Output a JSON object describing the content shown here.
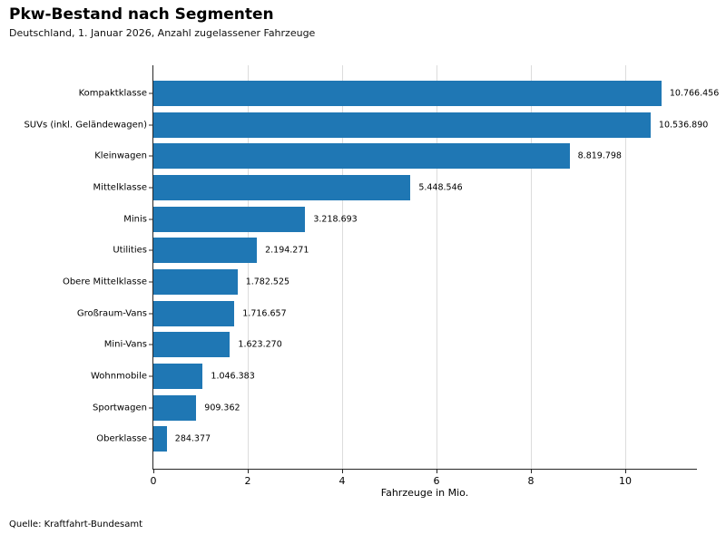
{
  "header": {
    "title": "Pkw-Bestand nach Segmenten",
    "subtitle": "Deutschland, 1. Januar 2026, Anzahl zugelassener Fahrzeuge"
  },
  "footer": {
    "source": "Quelle: Kraftfahrt-Bundesamt"
  },
  "chart_data": {
    "type": "bar",
    "orientation": "horizontal",
    "title": "Pkw-Bestand nach Segmenten",
    "subtitle": "Deutschland, 1. Januar 2026, Anzahl zugelassener Fahrzeuge",
    "categories": [
      "Kompaktklasse",
      "SUVs (inkl. Geländewagen)",
      "Kleinwagen",
      "Mittelklasse",
      "Minis",
      "Utilities",
      "Obere Mittelklasse",
      "Großraum-Vans",
      "Mini-Vans",
      "Wohnmobile",
      "Sportwagen",
      "Oberklasse"
    ],
    "values": [
      10766456,
      10536890,
      8819798,
      5448546,
      3218693,
      2194271,
      1782525,
      1716657,
      1623270,
      1046383,
      909362,
      284377
    ],
    "value_labels": [
      "10.766.456",
      "10.536.890",
      "8.819.798",
      "5.448.546",
      "3.218.693",
      "2.194.271",
      "1.782.525",
      "1.716.657",
      "1.623.270",
      "1.046.383",
      "909.362",
      "284.377"
    ],
    "xlabel": "Fahrzeuge in Mio.",
    "x_ticks": [
      0,
      2,
      4,
      6,
      8,
      10
    ],
    "xlim": [
      0,
      11.5
    ],
    "unit_divisor": 1000000,
    "bar_color": "#1f77b4",
    "gridline_color": "#dcdcdc",
    "grid": "vertical",
    "legend": "none",
    "source": "Quelle: Kraftfahrt-Bundesamt"
  }
}
